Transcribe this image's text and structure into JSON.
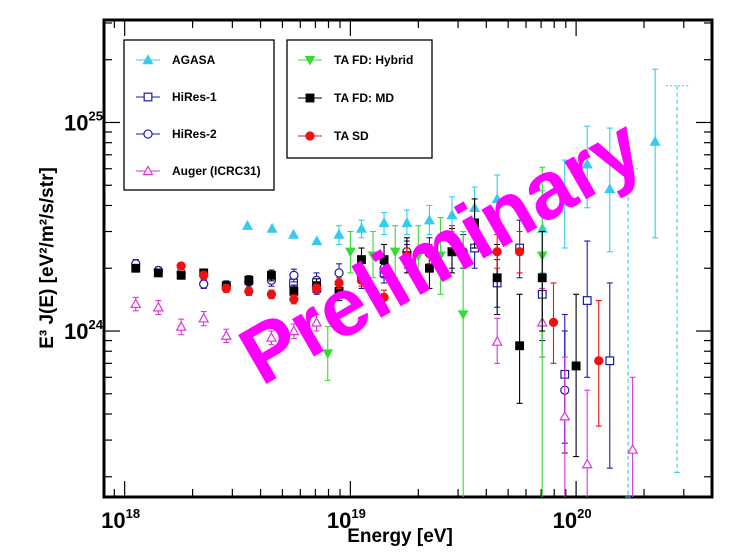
{
  "chart_data": {
    "type": "scatter",
    "title": "",
    "xlabel": "Energy [eV]",
    "ylabel": "E³ J(E) [eV²/m²/s/str]",
    "xscale": "log",
    "yscale": "log",
    "xlim": [
      8.1e+17,
      4e+20
    ],
    "ylim": [
      1.6e+23,
      3.1e+25
    ],
    "x_ticks": [
      {
        "base": "10",
        "exp": "18",
        "value": 1e+18
      },
      {
        "base": "10",
        "exp": "19",
        "value": 1e+19
      },
      {
        "base": "10",
        "exp": "20",
        "value": 1e+20
      }
    ],
    "y_ticks": [
      {
        "base": "10",
        "exp": "24",
        "value": 1e+24
      },
      {
        "base": "10",
        "exp": "25",
        "value": 1e+25
      }
    ],
    "grid": false,
    "legend_placement": "top-left",
    "watermark": "Preliminary",
    "series": [
      {
        "name": "AGASA",
        "color": "#33ccee",
        "marker": "triangle-up-filled",
        "points": [
          [
            3.5e+18,
            3.2e+24,
            3.2e+24,
            3.2e+24
          ],
          [
            4.5e+18,
            3.1e+24,
            3.1e+24,
            3.1e+24
          ],
          [
            5.6e+18,
            2.9e+24,
            2.9e+24,
            2.9e+24
          ],
          [
            7.1e+18,
            2.7e+24,
            2.7e+24,
            2.7e+24
          ],
          [
            8.9e+18,
            2.9e+24,
            2.6e+24,
            3.2e+24
          ],
          [
            1.12e+19,
            3.1e+24,
            2.8e+24,
            3.4e+24
          ],
          [
            1.41e+19,
            3.3e+24,
            2.9e+24,
            3.7e+24
          ],
          [
            1.78e+19,
            3.3e+24,
            2.9e+24,
            3.8e+24
          ],
          [
            2.24e+19,
            3.4e+24,
            2.9e+24,
            4e+24
          ],
          [
            2.82e+19,
            3.6e+24,
            3e+24,
            4.4e+24
          ],
          [
            3.55e+19,
            3.9e+24,
            3.1e+24,
            4.9e+24
          ],
          [
            4.47e+19,
            4.3e+24,
            3.2e+24,
            5.6e+24
          ],
          [
            7.1e+19,
            3.1e+24,
            1.9e+24,
            4.7e+24
          ],
          [
            8.9e+19,
            4.2e+24,
            2.5e+24,
            6.6e+24
          ],
          [
            1.12e+20,
            6.3e+24,
            3.9e+24,
            9.6e+24
          ],
          [
            1.41e+20,
            4.8e+24,
            2.4e+24,
            9.4e+24
          ],
          [
            2.24e+20,
            8.1e+24,
            2.8e+24,
            1.8e+25
          ]
        ],
        "upper_limits": [
          {
            "x": 1.7e+20,
            "x_lo": 1.5e+20,
            "x_hi": 1.9e+20,
            "y_lo": 1.6e+23,
            "y_hi": 6e+24
          },
          {
            "x": 2.8e+20,
            "x_lo": 2.5e+20,
            "x_hi": 3.2e+20,
            "y_lo": 2.1e+23,
            "y_hi": 1.5e+25
          }
        ]
      },
      {
        "name": "HiRes-1",
        "color": "#1a1aaa",
        "marker": "square-open",
        "points": [
          [
            5.6e+18,
            1.7e+24,
            1.6e+24,
            1.8e+24
          ],
          [
            7.1e+18,
            1.6e+24,
            1.5e+24,
            1.7e+24
          ],
          [
            8.9e+18,
            1.5e+24,
            1.4e+24,
            1.6e+24
          ],
          [
            1.12e+19,
            1.8e+24,
            1.6e+24,
            2e+24
          ],
          [
            1.41e+19,
            1.9e+24,
            1.7e+24,
            2.1e+24
          ],
          [
            1.78e+19,
            2.3e+24,
            2e+24,
            2.6e+24
          ],
          [
            2.24e+19,
            2.4e+24,
            2.1e+24,
            2.8e+24
          ],
          [
            2.82e+19,
            2.4e+24,
            2e+24,
            2.9e+24
          ],
          [
            3.55e+19,
            2.5e+24,
            2e+24,
            3.1e+24
          ],
          [
            4.47e+19,
            1.7e+24,
            1.3e+24,
            2.2e+24
          ],
          [
            5.62e+19,
            2.5e+24,
            1.8e+24,
            3.4e+24
          ],
          [
            7.08e+19,
            1.5e+24,
            9e+23,
            2.3e+24
          ],
          [
            8.91e+19,
            6.2e+23,
            2.9e+23,
            1.2e+24
          ],
          [
            1.12e+20,
            1.4e+24,
            6e+23,
            2.7e+24
          ],
          [
            1.41e+20,
            7.2e+23,
            2.2e+23,
            1.7e+24
          ]
        ]
      },
      {
        "name": "HiRes-2",
        "color": "#1a1aaa",
        "marker": "circle-open",
        "points": [
          [
            1.12e+18,
            2.1e+24,
            2e+24,
            2.2e+24
          ],
          [
            1.41e+18,
            1.95e+24,
            1.87e+24,
            2.03e+24
          ],
          [
            1.78e+18,
            1.9e+24,
            1.82e+24,
            1.98e+24
          ],
          [
            2.24e+18,
            1.68e+24,
            1.6e+24,
            1.76e+24
          ],
          [
            2.82e+18,
            1.65e+24,
            1.56e+24,
            1.74e+24
          ],
          [
            3.55e+18,
            1.72e+24,
            1.62e+24,
            1.82e+24
          ],
          [
            4.47e+18,
            1.75e+24,
            1.64e+24,
            1.86e+24
          ],
          [
            5.62e+18,
            1.85e+24,
            1.72e+24,
            1.98e+24
          ],
          [
            7.08e+18,
            1.75e+24,
            1.6e+24,
            1.9e+24
          ],
          [
            8.91e+18,
            1.9e+24,
            1.72e+24,
            2.1e+24
          ],
          [
            1.41e+19,
            2e+24,
            1.8e+24,
            2.2e+24
          ],
          [
            1.78e+19,
            2.4e+24,
            2.1e+24,
            2.7e+24
          ],
          [
            3.16e+19,
            2.4e+24,
            2e+24,
            2.9e+24
          ],
          [
            8.91e+19,
            5.2e+23,
            2.6e+23,
            1e+24
          ]
        ]
      },
      {
        "name": "Auger (ICRC31)",
        "color": "#dd33dd",
        "marker": "triangle-up-open",
        "points": [
          [
            1.12e+18,
            1.35e+24,
            1.25e+24,
            1.45e+24
          ],
          [
            1.41e+18,
            1.3e+24,
            1.2e+24,
            1.4e+24
          ],
          [
            1.78e+18,
            1.05e+24,
            9.6e+23,
            1.14e+24
          ],
          [
            2.24e+18,
            1.15e+24,
            1.06e+24,
            1.24e+24
          ],
          [
            2.82e+18,
            9.5e+23,
            8.8e+23,
            1.02e+24
          ],
          [
            3.55e+18,
            9.2e+23,
            8.5e+23,
            9.9e+23
          ],
          [
            4.47e+18,
            9.3e+23,
            8.6e+23,
            1e+24
          ],
          [
            5.62e+18,
            1e+24,
            9.2e+23,
            1.08e+24
          ],
          [
            7.08e+18,
            1.1e+24,
            1e+24,
            1.2e+24
          ],
          [
            4.47e+19,
            8.9e+23,
            7e+23,
            1.15e+24
          ],
          [
            7.08e+19,
            1.1e+24,
            7.5e+23,
            1.6e+24
          ],
          [
            8.91e+19,
            3.9e+23,
            1.6e+23,
            7.5e+23
          ],
          [
            1.12e+20,
            2.3e+23,
            1.6e+23,
            5.2e+23
          ],
          [
            1.78e+20,
            2.7e+23,
            1.6e+23,
            6e+23
          ]
        ]
      },
      {
        "name": "TA FD: Hybrid",
        "color": "#33dd33",
        "marker": "triangle-down-filled",
        "points": [
          [
            7.94e+18,
            7.8e+23,
            5.8e+23,
            1.05e+24
          ],
          [
            1e+19,
            2.4e+24,
            1.9e+24,
            3e+24
          ],
          [
            1.26e+19,
            2.3e+24,
            1.8e+24,
            3e+24
          ],
          [
            1.58e+19,
            2.4e+24,
            1.8e+24,
            3.2e+24
          ],
          [
            2e+19,
            2.3e+24,
            1.7e+24,
            3.2e+24
          ],
          [
            2.51e+19,
            2.3e+24,
            1.5e+24,
            3.5e+24
          ],
          [
            3.16e+19,
            1.2e+24,
            1.6e+23,
            3e+24
          ],
          [
            7.08e+19,
            2.3e+24,
            1.6e+23,
            6.1e+24
          ]
        ]
      },
      {
        "name": "TA FD: MD",
        "color": "#000000",
        "marker": "square-filled",
        "points": [
          [
            1.12e+18,
            2e+24,
            1.94e+24,
            2.06e+24
          ],
          [
            1.41e+18,
            1.9e+24,
            1.84e+24,
            1.96e+24
          ],
          [
            1.78e+18,
            1.85e+24,
            1.79e+24,
            1.91e+24
          ],
          [
            2.24e+18,
            1.9e+24,
            1.83e+24,
            1.97e+24
          ],
          [
            2.82e+18,
            1.65e+24,
            1.58e+24,
            1.72e+24
          ],
          [
            3.55e+18,
            1.75e+24,
            1.66e+24,
            1.84e+24
          ],
          [
            4.47e+18,
            1.85e+24,
            1.74e+24,
            1.96e+24
          ],
          [
            5.62e+18,
            1.55e+24,
            1.44e+24,
            1.66e+24
          ],
          [
            7.08e+18,
            1.65e+24,
            1.52e+24,
            1.78e+24
          ],
          [
            8.91e+18,
            1.55e+24,
            1.4e+24,
            1.7e+24
          ],
          [
            1.12e+19,
            2.2e+24,
            1.9e+24,
            2.5e+24
          ],
          [
            1.41e+19,
            2.2e+24,
            1.9e+24,
            2.6e+24
          ],
          [
            1.78e+19,
            2.3e+24,
            1.9e+24,
            2.8e+24
          ],
          [
            2.24e+19,
            2e+24,
            1.6e+24,
            2.6e+24
          ],
          [
            2.82e+19,
            2.4e+24,
            1.9e+24,
            3.1e+24
          ],
          [
            3.55e+19,
            3.3e+24,
            2.5e+24,
            4.3e+24
          ],
          [
            4.47e+19,
            1.8e+24,
            1.2e+24,
            2.6e+24
          ],
          [
            5.62e+19,
            8.5e+23,
            4.5e+23,
            1.5e+24
          ],
          [
            7.08e+19,
            1.8e+24,
            1e+24,
            3e+24
          ],
          [
            1e+20,
            6.8e+23,
            2.5e+23,
            1.5e+24
          ]
        ]
      },
      {
        "name": "TA SD",
        "color": "#ee1111",
        "marker": "circle-filled",
        "points": [
          [
            1.78e+18,
            2.05e+24,
            1.97e+24,
            2.13e+24
          ],
          [
            2.24e+18,
            1.85e+24,
            1.77e+24,
            1.93e+24
          ],
          [
            2.82e+18,
            1.6e+24,
            1.53e+24,
            1.67e+24
          ],
          [
            3.55e+18,
            1.55e+24,
            1.48e+24,
            1.62e+24
          ],
          [
            4.47e+18,
            1.5e+24,
            1.43e+24,
            1.57e+24
          ],
          [
            5.62e+18,
            1.42e+24,
            1.35e+24,
            1.49e+24
          ],
          [
            7.08e+18,
            1.6e+24,
            1.52e+24,
            1.68e+24
          ],
          [
            8.91e+18,
            1.7e+24,
            1.6e+24,
            1.8e+24
          ],
          [
            1.12e+19,
            1.75e+24,
            1.64e+24,
            1.86e+24
          ],
          [
            1.41e+19,
            1.45e+24,
            1.33e+24,
            1.57e+24
          ],
          [
            1.78e+19,
            2.3e+24,
            2.1e+24,
            2.5e+24
          ],
          [
            2.24e+19,
            2.35e+24,
            2.1e+24,
            2.6e+24
          ],
          [
            2.82e+19,
            2.8e+24,
            2.5e+24,
            3.2e+24
          ],
          [
            4.47e+19,
            2.4e+24,
            2e+24,
            2.9e+24
          ],
          [
            5.62e+19,
            2.4e+24,
            1.9e+24,
            3e+24
          ],
          [
            7.94e+19,
            1.1e+24,
            7e+23,
            1.7e+24
          ],
          [
            1.26e+20,
            7.2e+23,
            3.5e+23,
            1.4e+24
          ]
        ]
      }
    ]
  }
}
